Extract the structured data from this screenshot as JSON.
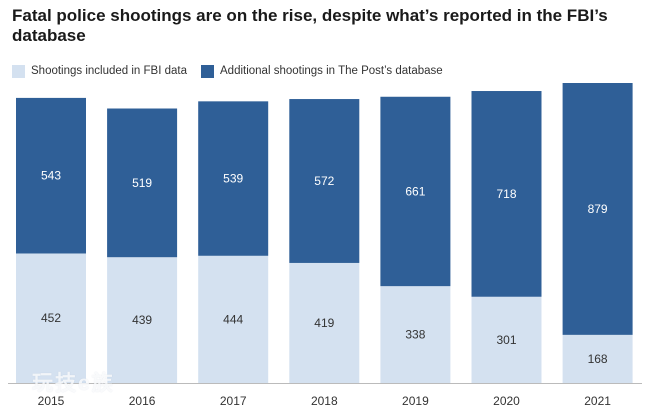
{
  "chart_data": {
    "type": "bar",
    "stacked": true,
    "title": "Fatal police shootings are on the rise, despite what’s reported in the FBI’s database",
    "categories": [
      "2015",
      "2016",
      "2017",
      "2018",
      "2019",
      "2020",
      "2021"
    ],
    "series": [
      {
        "name": "Shootings included in FBI data",
        "color": "#d4e1f0",
        "values": [
          452,
          439,
          444,
          419,
          338,
          301,
          168
        ]
      },
      {
        "name": "Additional shootings in The Post’s database",
        "color": "#2f5f97",
        "values": [
          543,
          519,
          539,
          572,
          661,
          718,
          879
        ]
      }
    ],
    "ylim": [
      0,
      1047
    ],
    "grid": false,
    "legend_position": "top-left",
    "xlabel": "",
    "ylabel": ""
  },
  "watermark": "玩技e族"
}
